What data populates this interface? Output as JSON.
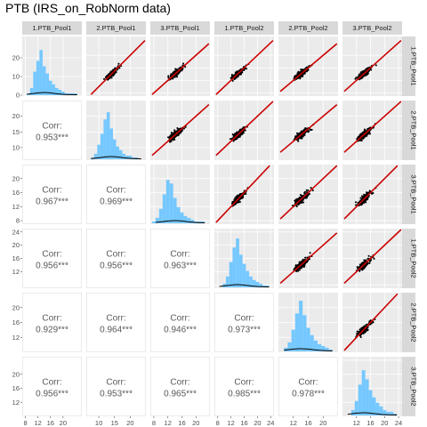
{
  "title": "PTB (IRS_on_RobNorm data)",
  "chart_data": {
    "type": "scatter-matrix",
    "title": "PTB (IRS_on_RobNorm data)",
    "variables": [
      "1.PTB_Pool1",
      "2.PTB_Pool1",
      "3.PTB_Pool1",
      "1.PTB_Pool2",
      "2.PTB_Pool2",
      "3.PTB_Pool2"
    ],
    "axes": [
      {
        "lim": [
          7,
          26
        ],
        "ticks": [
          8,
          12,
          16,
          20
        ]
      },
      {
        "lim": [
          6,
          25
        ],
        "ticks": [
          10,
          15,
          20
        ]
      },
      {
        "lim": [
          7,
          24
        ],
        "ticks": [
          8,
          12,
          16,
          20
        ]
      },
      {
        "lim": [
          7,
          25
        ],
        "ticks": [
          8,
          12,
          16,
          20,
          24
        ]
      },
      {
        "lim": [
          8,
          24
        ],
        "ticks": [
          12,
          16,
          20
        ]
      },
      {
        "lim": [
          8,
          25
        ],
        "ticks": [
          12,
          16,
          20,
          24
        ]
      }
    ],
    "row_tick_labels": [
      [
        "0",
        "10",
        "20"
      ],
      [
        "10",
        "15",
        "20"
      ],
      [
        "8",
        "12",
        "16",
        "20"
      ],
      [
        "12",
        "16",
        "20",
        "24"
      ],
      [
        "12",
        "16",
        "20"
      ],
      [
        "12",
        "16",
        "20"
      ]
    ],
    "bottom_tick_labels": [
      [
        "8",
        "12",
        "16",
        "20"
      ],
      [
        "10",
        "15",
        "20"
      ],
      [
        "8",
        "12",
        "16",
        "20"
      ],
      [
        "8",
        "12",
        "16",
        "20",
        "24"
      ],
      [
        "12",
        "16",
        "20"
      ],
      [
        "12",
        "16",
        "20",
        "24"
      ]
    ],
    "diag_left_ticks": [
      0,
      10,
      20
    ],
    "corr_label": "Corr:",
    "correlations": [
      {
        "row": 1,
        "col": 0,
        "text": "0.953***"
      },
      {
        "row": 2,
        "col": 0,
        "text": "0.967***"
      },
      {
        "row": 2,
        "col": 1,
        "text": "0.969***"
      },
      {
        "row": 3,
        "col": 0,
        "text": "0.956***"
      },
      {
        "row": 3,
        "col": 1,
        "text": "0.956***"
      },
      {
        "row": 3,
        "col": 2,
        "text": "0.963***"
      },
      {
        "row": 4,
        "col": 0,
        "text": "0.929***"
      },
      {
        "row": 4,
        "col": 1,
        "text": "0.964***"
      },
      {
        "row": 4,
        "col": 2,
        "text": "0.946***"
      },
      {
        "row": 4,
        "col": 3,
        "text": "0.973***"
      },
      {
        "row": 5,
        "col": 0,
        "text": "0.956***"
      },
      {
        "row": 5,
        "col": 1,
        "text": "0.953***"
      },
      {
        "row": 5,
        "col": 2,
        "text": "0.965***"
      },
      {
        "row": 5,
        "col": 3,
        "text": "0.985***"
      },
      {
        "row": 5,
        "col": 4,
        "text": "0.978***"
      }
    ],
    "histograms": [
      [
        [
          9,
          1
        ],
        [
          10,
          4
        ],
        [
          11,
          13
        ],
        [
          12,
          19
        ],
        [
          13,
          25
        ],
        [
          14,
          16
        ],
        [
          15,
          12
        ],
        [
          16,
          8
        ],
        [
          17,
          6
        ],
        [
          18,
          4
        ],
        [
          19,
          3
        ],
        [
          20,
          2
        ],
        [
          21,
          1
        ],
        [
          22,
          1
        ],
        [
          23,
          1
        ],
        [
          24,
          1
        ]
      ],
      [
        [
          8,
          1
        ],
        [
          9,
          3
        ],
        [
          10,
          8
        ],
        [
          11,
          14
        ],
        [
          12,
          22
        ],
        [
          13,
          26
        ],
        [
          14,
          17
        ],
        [
          15,
          11
        ],
        [
          16,
          7
        ],
        [
          17,
          5
        ],
        [
          18,
          3
        ],
        [
          19,
          2
        ],
        [
          20,
          2
        ],
        [
          21,
          1
        ],
        [
          22,
          1
        ]
      ],
      [
        [
          8,
          1
        ],
        [
          9,
          3
        ],
        [
          10,
          8
        ],
        [
          11,
          16
        ],
        [
          12,
          24
        ],
        [
          13,
          22
        ],
        [
          14,
          14
        ],
        [
          15,
          9
        ],
        [
          16,
          6
        ],
        [
          17,
          4
        ],
        [
          18,
          3
        ],
        [
          19,
          2
        ],
        [
          20,
          1
        ],
        [
          21,
          1
        ],
        [
          22,
          1
        ]
      ],
      [
        [
          10,
          2
        ],
        [
          11,
          6
        ],
        [
          12,
          14
        ],
        [
          13,
          22
        ],
        [
          14,
          27
        ],
        [
          15,
          18
        ],
        [
          16,
          13
        ],
        [
          17,
          9
        ],
        [
          18,
          6
        ],
        [
          19,
          4
        ],
        [
          20,
          3
        ],
        [
          21,
          2
        ],
        [
          22,
          1
        ],
        [
          23,
          1
        ]
      ],
      [
        [
          10,
          2
        ],
        [
          11,
          5
        ],
        [
          12,
          12
        ],
        [
          13,
          21
        ],
        [
          14,
          28
        ],
        [
          15,
          20
        ],
        [
          16,
          13
        ],
        [
          17,
          9
        ],
        [
          18,
          6
        ],
        [
          19,
          4
        ],
        [
          20,
          3
        ],
        [
          21,
          2
        ],
        [
          22,
          1
        ]
      ],
      [
        [
          11,
          3
        ],
        [
          12,
          8
        ],
        [
          13,
          17
        ],
        [
          14,
          25
        ],
        [
          15,
          20
        ],
        [
          16,
          14
        ],
        [
          17,
          10
        ],
        [
          18,
          7
        ],
        [
          19,
          5
        ],
        [
          20,
          3
        ],
        [
          21,
          2
        ],
        [
          22,
          2
        ],
        [
          23,
          1
        ]
      ]
    ],
    "fit_line": {
      "color": "#cc0000"
    },
    "point_color": "#000000",
    "hist_fill": "#75c8ff",
    "density_color": "#000000",
    "panel_background": "#ebebeb",
    "strip_background": "#d9d9d9",
    "grid": true
  }
}
